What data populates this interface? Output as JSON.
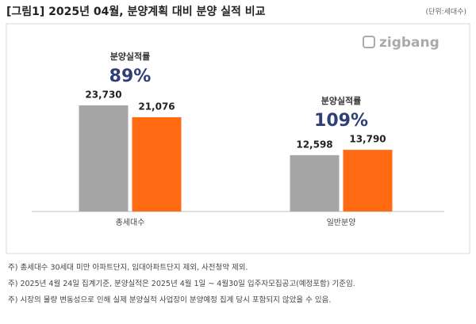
{
  "chart_data": {
    "type": "bar",
    "title": "[그림1] 2025년 04월, 분양계획 대비 분양 실적 비교",
    "unit": "(단위:세대수)",
    "logo": "zigbang",
    "categories": [
      "총세대수",
      "일반분양"
    ],
    "series": [
      {
        "color": "#a6a6a6",
        "values": [
          23730,
          12598
        ],
        "value_labels": [
          "23,730",
          "12,598"
        ]
      },
      {
        "color": "#ff6a13",
        "values": [
          21076,
          13790
        ],
        "value_labels": [
          "21,076",
          "13,790"
        ]
      }
    ],
    "annotations": [
      {
        "text": "분양실적률",
        "rate": "89%"
      },
      {
        "text": "분양실적률",
        "rate": "109%"
      }
    ],
    "footnotes": [
      "주) 총세대수 30세대 미만 아파트단지, 임대아파트단지 제외, 사전청약 제외.",
      "주) 2025년 4월 24일 집계기준, 분양실적은 2025년 4월 1일 ~ 4월30일 입주자모집공고(예정포함) 기준임.",
      "주) 시장의 물량 변동성으로 인해 실제 분양실적 사업장이 분양예정 집계 당시 포함되지 않았을 수 있음."
    ]
  }
}
